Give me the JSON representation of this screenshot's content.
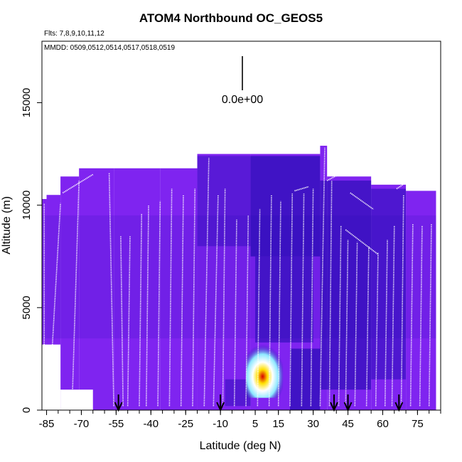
{
  "chart_data": {
    "type": "heatmap",
    "title": "ATOM4 Northbound OC_GEOS5",
    "subtitle_flights": "Flts: 7,8,9,10,11,12",
    "subtitle_dates": "MMDD: 0509,0512,0514,0517,0518,0519",
    "xlabel": "Latitude (deg N)",
    "ylabel": "Altitude (m)",
    "xlim": [
      -87,
      85
    ],
    "ylim": [
      0,
      18000
    ],
    "x_ticks": [
      -85,
      -70,
      -55,
      -40,
      -25,
      -10,
      5,
      15,
      30,
      45,
      60,
      75
    ],
    "y_ticks": [
      0,
      5000,
      10000,
      15000
    ],
    "scale_label": "0.0e+00",
    "colors": {
      "background_field": "#7f24f0",
      "low_field": "#5a1ad8",
      "mid_field": "#2f10c8",
      "dark_field": "#1508a8",
      "enhancement_cyan": "#8ee8ff",
      "enhancement_yellow": "#ffe000",
      "enhancement_red": "#d80000",
      "flight_track": "#ffffff"
    },
    "field_coverage": [
      {
        "lat_from": -87,
        "lat_to": -85,
        "top_alt": 10300
      },
      {
        "lat_from": -85,
        "lat_to": -79,
        "top_alt": 10500
      },
      {
        "lat_from": -79,
        "lat_to": -71,
        "top_alt": 11400
      },
      {
        "lat_from": -71,
        "lat_to": -56,
        "top_alt": 11800
      },
      {
        "lat_from": -56,
        "lat_to": -36,
        "top_alt": 11800
      },
      {
        "lat_from": -36,
        "lat_to": -20,
        "top_alt": 11800
      },
      {
        "lat_from": -20,
        "lat_to": 3,
        "top_alt": 12500
      },
      {
        "lat_from": 3,
        "lat_to": 33,
        "top_alt": 12500
      },
      {
        "lat_from": 33,
        "lat_to": 36,
        "top_alt": 12900
      },
      {
        "lat_from": 36,
        "lat_to": 55,
        "top_alt": 11400
      },
      {
        "lat_from": 55,
        "lat_to": 70,
        "top_alt": 11000
      },
      {
        "lat_from": 70,
        "lat_to": 83,
        "top_alt": 10700
      }
    ],
    "enhancements": [
      {
        "lat_from": 1,
        "lat_to": 17,
        "alt_from": 600,
        "alt_to": 3200,
        "peak_lat": 8,
        "peak_alt": 1800
      }
    ],
    "profiles": [
      {
        "lat_bottom": -86,
        "lat_top": -86,
        "alt_top": 10100
      },
      {
        "lat_bottom": -84,
        "lat_top": -79,
        "alt_top": 10100
      },
      {
        "lat_bottom": -74,
        "lat_top": -71,
        "alt_top": 11200
      },
      {
        "lat_bottom": -56,
        "lat_top": -58,
        "alt_top": 11600
      },
      {
        "lat_bottom": -52,
        "lat_top": -53,
        "alt_top": 8500
      },
      {
        "lat_bottom": -50,
        "lat_top": -49,
        "alt_top": 8500
      },
      {
        "lat_bottom": -45,
        "lat_top": -44,
        "alt_top": 9600
      },
      {
        "lat_bottom": -42,
        "lat_top": -41,
        "alt_top": 10000
      },
      {
        "lat_bottom": -37,
        "lat_top": -36,
        "alt_top": 10200
      },
      {
        "lat_bottom": -32,
        "lat_top": -31,
        "alt_top": 10800
      },
      {
        "lat_bottom": -27,
        "lat_top": -26,
        "alt_top": 10500
      },
      {
        "lat_bottom": -22,
        "lat_top": -21,
        "alt_top": 10800
      },
      {
        "lat_bottom": -17,
        "lat_top": -15,
        "alt_top": 12300
      },
      {
        "lat_bottom": -13,
        "lat_top": -11,
        "alt_top": 10500
      },
      {
        "lat_bottom": -9,
        "lat_top": -8,
        "alt_top": 10800
      },
      {
        "lat_bottom": -4,
        "lat_top": -3,
        "alt_top": 9300
      },
      {
        "lat_bottom": 1,
        "lat_top": 2,
        "alt_top": 9500
      },
      {
        "lat_bottom": 6,
        "lat_top": 7,
        "alt_top": 9800
      },
      {
        "lat_bottom": 11,
        "lat_top": 12,
        "alt_top": 10500
      },
      {
        "lat_bottom": 15,
        "lat_top": 16,
        "alt_top": 10200
      },
      {
        "lat_bottom": 20,
        "lat_top": 21,
        "alt_top": 10600
      },
      {
        "lat_bottom": 25,
        "lat_top": 26,
        "alt_top": 10600
      },
      {
        "lat_bottom": 29,
        "lat_top": 30,
        "alt_top": 10800
      },
      {
        "lat_bottom": 33,
        "lat_top": 35,
        "alt_top": 12800
      },
      {
        "lat_bottom": 37,
        "lat_top": 38,
        "alt_top": 11200
      },
      {
        "lat_bottom": 41,
        "lat_top": 42,
        "alt_top": 9000
      },
      {
        "lat_bottom": 44,
        "lat_top": 45,
        "alt_top": 8300
      },
      {
        "lat_bottom": 48,
        "lat_top": 49,
        "alt_top": 8200
      },
      {
        "lat_bottom": 53,
        "lat_top": 54,
        "alt_top": 8000
      },
      {
        "lat_bottom": 57,
        "lat_top": 58,
        "alt_top": 7700
      },
      {
        "lat_bottom": 61,
        "lat_top": 62,
        "alt_top": 8300
      },
      {
        "lat_bottom": 64,
        "lat_top": 65,
        "alt_top": 9000
      },
      {
        "lat_bottom": 68,
        "lat_top": 69,
        "alt_top": 10500
      },
      {
        "lat_bottom": 72,
        "lat_top": 73,
        "alt_top": 9100
      },
      {
        "lat_bottom": 76,
        "lat_top": 77,
        "alt_top": 9000
      },
      {
        "lat_bottom": 80,
        "lat_top": 81,
        "alt_top": 9100
      }
    ],
    "level_legs": [
      {
        "lat_from": -78,
        "lat_to": -65,
        "alt_from": 10600,
        "alt_to": 11500
      },
      {
        "lat_from": 22,
        "lat_to": 28,
        "alt_from": 10700,
        "alt_to": 10900
      },
      {
        "lat_from": 36,
        "lat_to": 46,
        "alt_from": 11200,
        "alt_to": 11800
      },
      {
        "lat_from": 46,
        "lat_to": 56,
        "alt_from": 10600,
        "alt_to": 9800
      },
      {
        "lat_from": 44,
        "lat_to": 58,
        "alt_from": 8800,
        "alt_to": 7600
      },
      {
        "lat_from": 66,
        "lat_to": 70,
        "alt_from": 10800,
        "alt_to": 11100
      }
    ],
    "markers_lat": [
      -54,
      -10,
      39,
      45,
      67
    ]
  }
}
